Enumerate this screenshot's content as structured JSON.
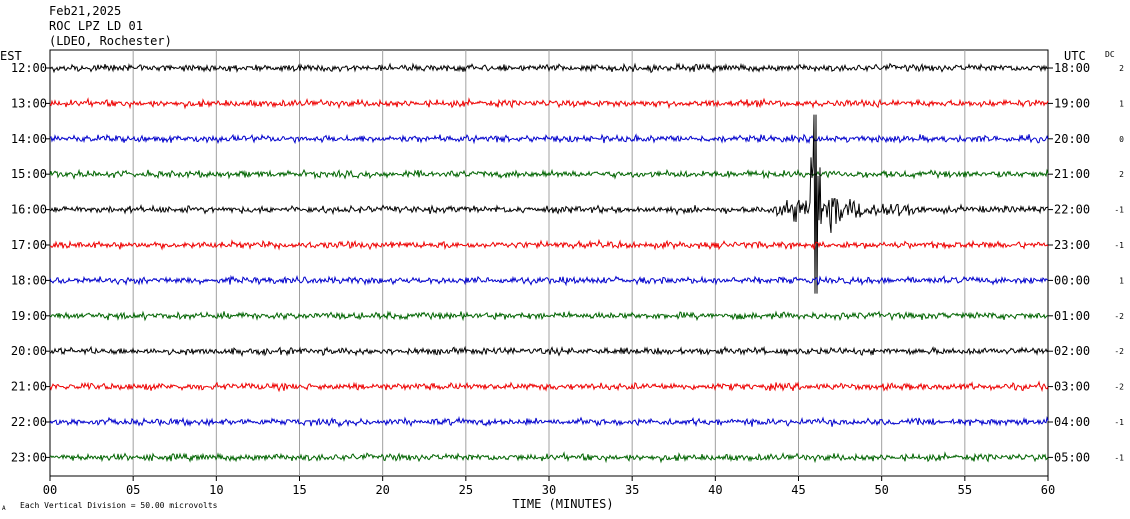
{
  "header": {
    "date": "Feb21,2025",
    "station": "ROC LPZ LD 01",
    "network": "(LDEO, Rochester)"
  },
  "chart_data": {
    "type": "line",
    "title": "Feb21,2025",
    "xlabel": "TIME (MINUTES)",
    "xlim": [
      0,
      60
    ],
    "x_ticks": [
      "00",
      "05",
      "10",
      "15",
      "20",
      "25",
      "30",
      "35",
      "40",
      "45",
      "50",
      "55",
      "60"
    ],
    "left_axis_label": "EST",
    "right_axis_label": "UTC",
    "dc_label": "DC",
    "scale_note": "Each Vertical Division =   50.00 microvolts",
    "scale_marker": "A",
    "grid": true,
    "trace_colors": [
      "#000000",
      "#ee0000",
      "#0000cc",
      "#006400"
    ],
    "rows": [
      {
        "est": "12:00",
        "utc": "18:00",
        "dc": "2"
      },
      {
        "est": "13:00",
        "utc": "19:00",
        "dc": "1"
      },
      {
        "est": "14:00",
        "utc": "20:00",
        "dc": "0"
      },
      {
        "est": "15:00",
        "utc": "21:00",
        "dc": "2"
      },
      {
        "est": "16:00",
        "utc": "22:00",
        "dc": "-1"
      },
      {
        "est": "17:00",
        "utc": "23:00",
        "dc": "-1"
      },
      {
        "est": "18:00",
        "utc": "00:00",
        "dc": "1"
      },
      {
        "est": "19:00",
        "utc": "01:00",
        "dc": "-2"
      },
      {
        "est": "20:00",
        "utc": "02:00",
        "dc": "-2"
      },
      {
        "est": "21:00",
        "utc": "03:00",
        "dc": "-2"
      },
      {
        "est": "22:00",
        "utc": "04:00",
        "dc": "-1"
      },
      {
        "est": "23:00",
        "utc": "05:00",
        "dc": "-1"
      }
    ],
    "event": {
      "row_est": "16:00",
      "start_minute": 43.5,
      "peak_minute": 46.0,
      "end_minute": 52.0
    }
  }
}
